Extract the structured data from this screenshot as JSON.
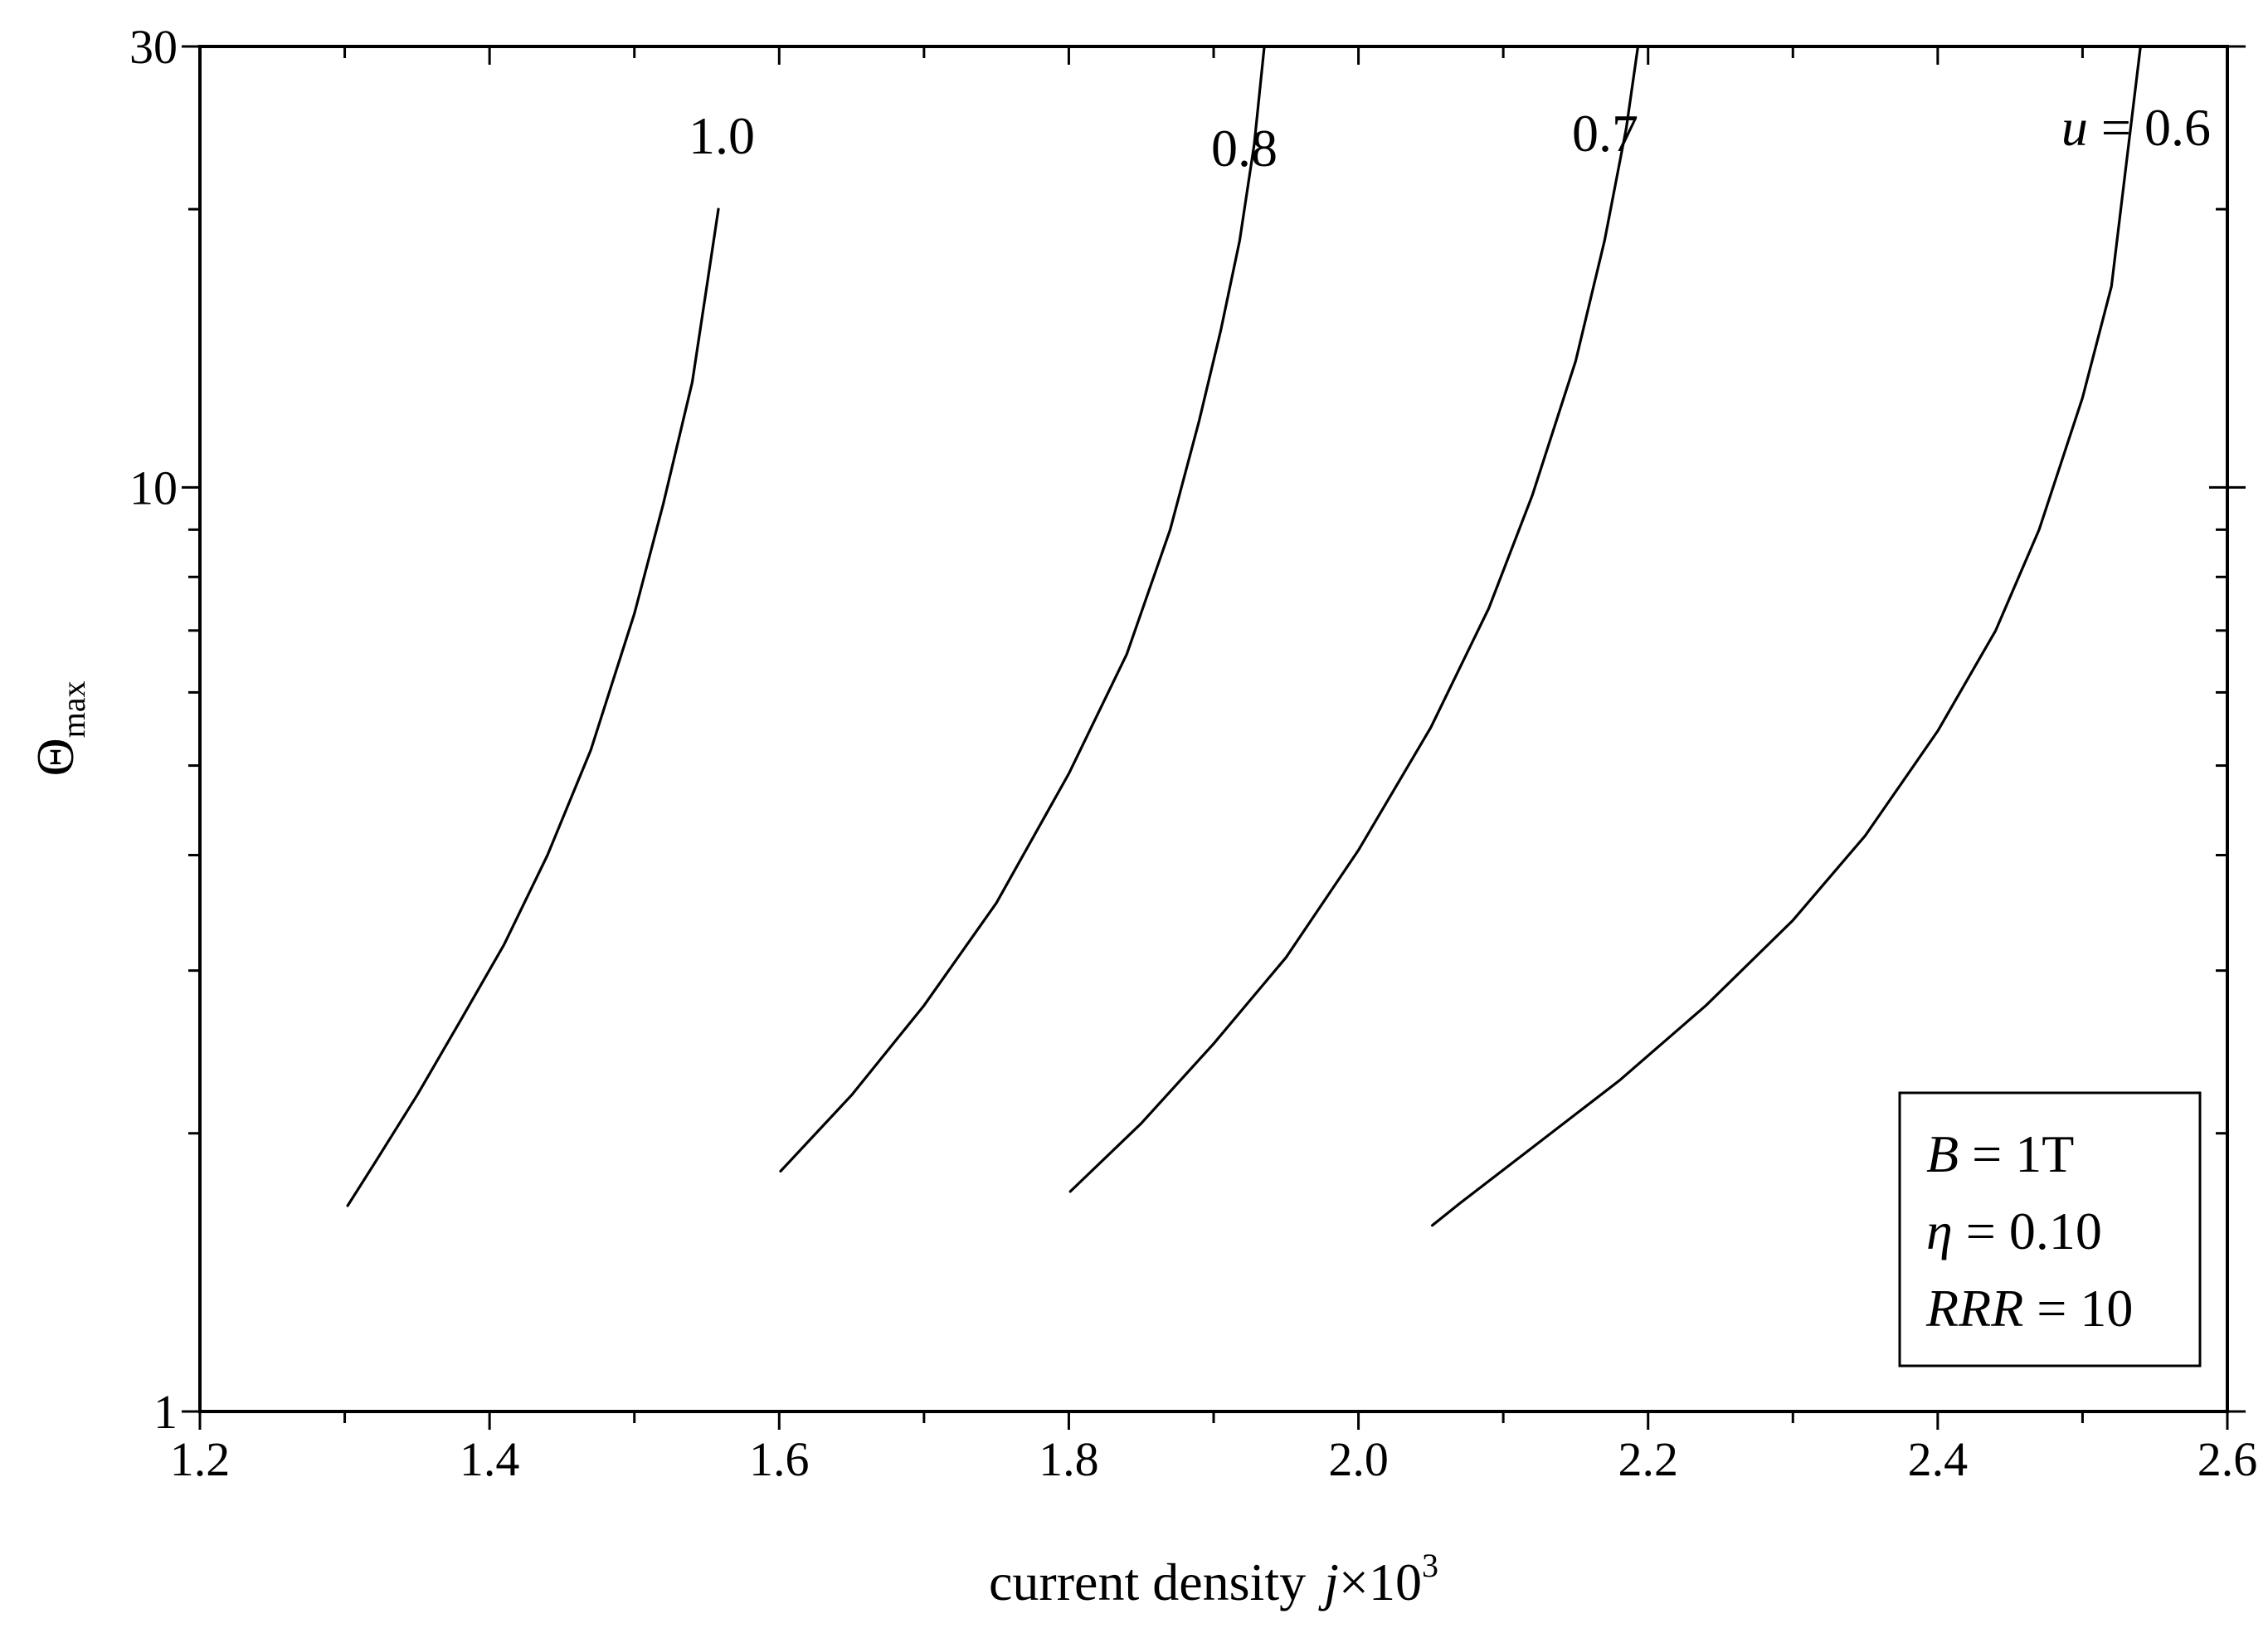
{
  "chart_data": {
    "type": "line",
    "title": "",
    "xlabel": {
      "prefix": "current density",
      "var": "j",
      "suffix": "×10",
      "exponent": "3"
    },
    "ylabel": {
      "symbol": "Θ",
      "subscript": "max"
    },
    "xlim": [
      1.2,
      2.6
    ],
    "ylim": [
      1,
      30
    ],
    "y_scale": "log",
    "grid": false,
    "x_ticks": [
      {
        "value": 1.2,
        "label": "1.2"
      },
      {
        "value": 1.4,
        "label": "1.4"
      },
      {
        "value": 1.6,
        "label": "1.6"
      },
      {
        "value": 1.8,
        "label": "1.8"
      },
      {
        "value": 2.0,
        "label": "2.0"
      },
      {
        "value": 2.2,
        "label": "2.2"
      },
      {
        "value": 2.4,
        "label": "2.4"
      },
      {
        "value": 2.6,
        "label": "2.6"
      }
    ],
    "y_ticks": [
      {
        "value": 1,
        "label": "1"
      },
      {
        "value": 10,
        "label": "10"
      },
      {
        "value": 30,
        "label": "30"
      }
    ],
    "series": [
      {
        "label_var": "",
        "label_eq": "",
        "label_value": "1.0",
        "x": [
          1.302,
          1.32,
          1.35,
          1.38,
          1.41,
          1.44,
          1.47,
          1.5,
          1.52,
          1.54,
          1.55,
          1.558
        ],
        "y": [
          1.67,
          1.85,
          2.2,
          2.65,
          3.2,
          4.0,
          5.2,
          7.3,
          9.6,
          13.0,
          16.5,
          20.0
        ]
      },
      {
        "label_var": "",
        "label_eq": "",
        "label_value": "0.8",
        "x": [
          1.601,
          1.65,
          1.7,
          1.75,
          1.8,
          1.84,
          1.87,
          1.89,
          1.905,
          1.918,
          1.928,
          1.935
        ],
        "y": [
          1.82,
          2.2,
          2.75,
          3.55,
          4.9,
          6.6,
          9.0,
          11.8,
          14.8,
          18.5,
          23.5,
          30.0
        ]
      },
      {
        "label_var": "",
        "label_eq": "",
        "label_value": "0.7",
        "x": [
          1.801,
          1.85,
          1.9,
          1.95,
          2.0,
          2.05,
          2.09,
          2.12,
          2.15,
          2.17,
          2.185,
          2.193
        ],
        "y": [
          1.73,
          2.05,
          2.5,
          3.1,
          4.05,
          5.5,
          7.4,
          9.8,
          13.7,
          18.5,
          24.5,
          30.0
        ]
      },
      {
        "label_var": "u",
        "label_eq": " = ",
        "label_value": "0.6",
        "x": [
          2.051,
          2.07,
          2.12,
          2.18,
          2.24,
          2.3,
          2.35,
          2.4,
          2.44,
          2.47,
          2.5,
          2.52,
          2.54
        ],
        "y": [
          1.59,
          1.68,
          1.93,
          2.28,
          2.75,
          3.4,
          4.2,
          5.45,
          7.0,
          9.0,
          12.5,
          16.5,
          30.0
        ]
      }
    ],
    "info_box": [
      {
        "var": "B",
        "eq": " = ",
        "value": "1T"
      },
      {
        "var": "η",
        "eq": " = ",
        "value": "0.10"
      },
      {
        "var": "RRR",
        "eq": " = ",
        "value": "10"
      }
    ]
  }
}
